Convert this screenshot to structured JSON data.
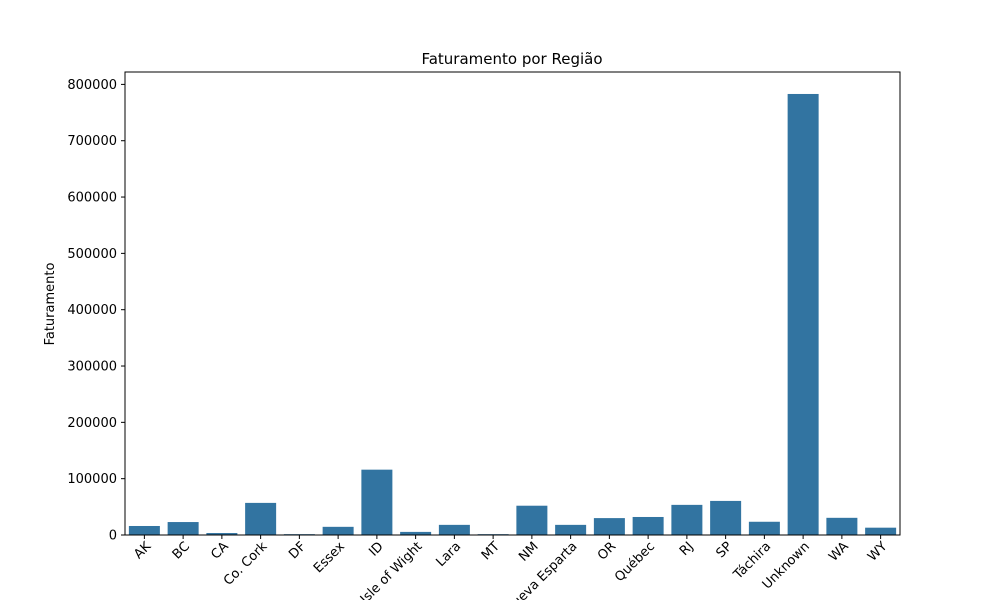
{
  "chart_data": {
    "type": "bar",
    "title": "Faturamento por Região",
    "xlabel": "",
    "ylabel": "Faturamento",
    "ylim": [
      0,
      822000
    ],
    "yticks": [
      0,
      100000,
      200000,
      300000,
      400000,
      500000,
      600000,
      700000,
      800000
    ],
    "grid": false,
    "bar_color": "#3274a1",
    "categories": [
      "AK",
      "BC",
      "CA",
      "Co. Cork",
      "DF",
      "Essex",
      "ID",
      "Isle of Wight",
      "Lara",
      "MT",
      "NM",
      "Nueva Esparta",
      "OR",
      "Québec",
      "RJ",
      "SP",
      "Táchira",
      "Unknown",
      "WA",
      "WY"
    ],
    "values": [
      16000,
      23000,
      3500,
      57000,
      1500,
      14500,
      116000,
      5500,
      18000,
      1500,
      52000,
      18000,
      30000,
      32000,
      53500,
      60500,
      23500,
      783000,
      30500,
      13000
    ]
  }
}
